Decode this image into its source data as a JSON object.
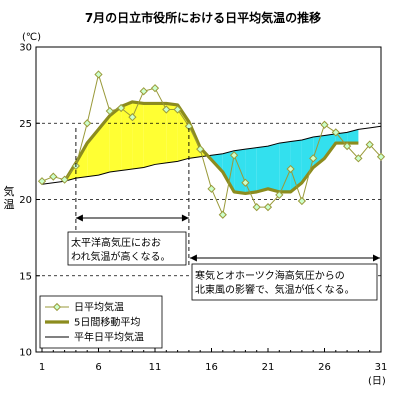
{
  "chart_data": {
    "type": "line",
    "title": "7月の日立市役所における日平均気温の推移",
    "y_unit_label": "(℃)",
    "ylabel": "気温",
    "x_unit_label": "(日)",
    "xlim": [
      1,
      31
    ],
    "ylim": [
      10,
      30
    ],
    "yticks": [
      10,
      15,
      20,
      25,
      30
    ],
    "xticks": [
      1,
      6,
      11,
      16,
      21,
      26,
      31
    ],
    "grid": "horizontal-dashed",
    "legend_position": "bottom-left",
    "colors": {
      "daily": "#9a9a3a",
      "daily_marker": "#ccffcc",
      "moving_avg": "#8c8c1e",
      "normal": "#000000",
      "warm_fill": "#ffff33",
      "cool_fill": "#33e0ee"
    },
    "x": [
      1,
      2,
      3,
      4,
      5,
      6,
      7,
      8,
      9,
      10,
      11,
      12,
      13,
      14,
      15,
      16,
      17,
      18,
      19,
      20,
      21,
      22,
      23,
      24,
      25,
      26,
      27,
      28,
      29,
      30,
      31
    ],
    "series": [
      {
        "name": "日平均気温",
        "key": "daily",
        "values": [
          21.2,
          21.5,
          21.3,
          22.2,
          25.0,
          28.2,
          25.8,
          26.0,
          25.4,
          27.1,
          27.3,
          25.9,
          25.9,
          24.8,
          23.3,
          20.7,
          19.0,
          22.9,
          21.1,
          19.5,
          19.5,
          20.3,
          22.0,
          19.9,
          22.7,
          24.9,
          24.4,
          23.5,
          22.7,
          23.6,
          22.8
        ]
      },
      {
        "name": "5日間移動平均",
        "key": "moving_avg",
        "values": [
          null,
          null,
          21.2,
          22.4,
          23.7,
          24.6,
          25.5,
          26.1,
          26.4,
          26.3,
          26.3,
          26.3,
          26.2,
          25.1,
          23.4,
          22.6,
          21.8,
          20.5,
          20.4,
          20.5,
          20.7,
          20.5,
          20.5,
          21.1,
          22.1,
          22.7,
          23.7,
          23.7,
          23.7,
          null,
          null
        ]
      },
      {
        "name": "平年日平均気温",
        "key": "normal",
        "values": [
          21.0,
          21.1,
          21.2,
          21.4,
          21.5,
          21.6,
          21.8,
          21.9,
          22.0,
          22.1,
          22.3,
          22.4,
          22.5,
          22.7,
          22.8,
          22.9,
          23.0,
          23.2,
          23.3,
          23.4,
          23.5,
          23.7,
          23.8,
          23.9,
          24.1,
          24.2,
          24.3,
          24.4,
          24.6,
          24.7,
          24.8
        ]
      }
    ],
    "annotations": [
      {
        "key": "warm",
        "from_day": 4,
        "to_day": 14,
        "text_lines": [
          "太平洋高気圧におお",
          "われ気温が高くなる。"
        ]
      },
      {
        "key": "cool",
        "from_day": 14,
        "to_day": 31,
        "text_lines": [
          "寒気とオホーツク海高気圧からの",
          "北東風の影響で、気温が低くなる。"
        ]
      }
    ]
  }
}
